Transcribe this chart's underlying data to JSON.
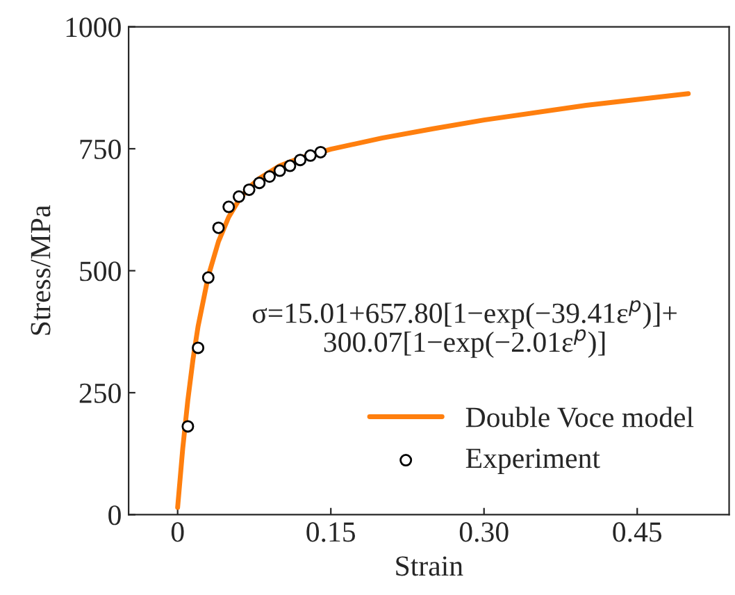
{
  "chart_data": {
    "type": "line",
    "xlabel": "Strain",
    "ylabel": "Stress/MPa",
    "xlim": [
      -0.048,
      0.54
    ],
    "ylim": [
      0,
      1000
    ],
    "xticks": [
      0,
      {
        "value": 0.15,
        "label": "0.15"
      },
      {
        "value": 0.3,
        "label": "0.30"
      },
      0.45
    ],
    "yticks": [
      0,
      250,
      500,
      750,
      1000
    ],
    "grid": false,
    "legend": "bottom right",
    "annotations": [
      "σ=15.01+657.80[1−exp(−39.41ε$^{p}$)]+\n300.07[1−exp(−2.01ε$^{p}$)]"
    ],
    "series": [
      {
        "name": "Double Voce model",
        "color": "#ff7f0e",
        "marker": "none",
        "line_style": "solid",
        "x": [
          0,
          0.005,
          0.01,
          0.015,
          0.02,
          0.03,
          0.04,
          0.05,
          0.06,
          0.07,
          0.08,
          0.1,
          0.12,
          0.15,
          0.2,
          0.25,
          0.3,
          0.4,
          0.5
        ],
        "values": [
          15,
          136,
          235,
          318,
          386,
          489,
          560,
          610,
          645,
          671,
          689,
          715,
          731,
          749,
          772,
          791,
          809,
          839,
          863
        ]
      },
      {
        "name": "Experiment",
        "type": "scatter",
        "color": "#000000",
        "marker": "circle",
        "x": [
          0.01,
          0.02,
          0.03,
          0.04,
          0.05,
          0.06,
          0.07,
          0.08,
          0.09,
          0.1,
          0.11,
          0.12,
          0.13,
          0.14
        ],
        "values": [
          181,
          342,
          486,
          588,
          631,
          652,
          666,
          680,
          693,
          705,
          715,
          727,
          736,
          743
        ]
      }
    ]
  }
}
